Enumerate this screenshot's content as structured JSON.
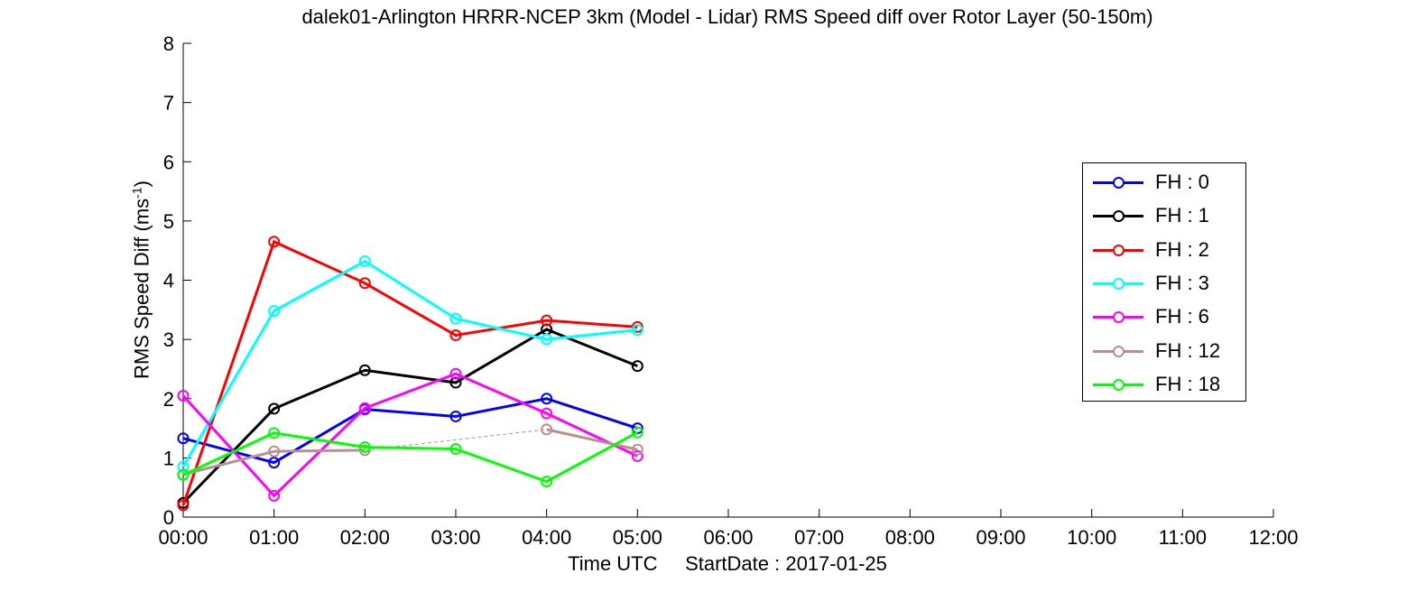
{
  "chart_data": {
    "type": "line",
    "title": "dalek01-Arlington HRRR-NCEP 3km (Model - Lidar) RMS Speed diff over Rotor Layer (50-150m)",
    "xlabel": "Time UTC     StartDate : 2017-01-25",
    "ylabel": "RMS Speed Diff (ms",
    "ylabel_sup": "-1",
    "ylabel_end": ")",
    "x_ticks": [
      "00:00",
      "01:00",
      "02:00",
      "03:00",
      "04:00",
      "05:00",
      "06:00",
      "07:00",
      "08:00",
      "09:00",
      "10:00",
      "11:00",
      "12:00"
    ],
    "xlim": [
      0,
      12
    ],
    "ylim": [
      0,
      8
    ],
    "y_ticks": [
      "0",
      "1",
      "2",
      "3",
      "4",
      "5",
      "6",
      "7",
      "8"
    ],
    "legend_position": "right",
    "series": [
      {
        "name": "FH : 0",
        "color": "#0000ff",
        "x": [
          0,
          1,
          2,
          3,
          4,
          5
        ],
        "values": [
          1.33,
          0.92,
          1.82,
          1.7,
          2.0,
          1.5
        ]
      },
      {
        "name": "FH : 1",
        "color": "#000000",
        "x": [
          0,
          1,
          2,
          3,
          4,
          5
        ],
        "values": [
          0.24,
          1.83,
          2.48,
          2.27,
          3.17,
          2.55
        ]
      },
      {
        "name": "FH : 2",
        "color": "#ff0000",
        "x": [
          0,
          1,
          2,
          3,
          4,
          5
        ],
        "values": [
          0.2,
          4.65,
          3.95,
          3.07,
          3.32,
          3.21
        ]
      },
      {
        "name": "FH : 3",
        "color": "#00ffff",
        "x": [
          0,
          1,
          2,
          3,
          4,
          5
        ],
        "values": [
          0.85,
          3.48,
          4.32,
          3.35,
          3.0,
          3.16
        ]
      },
      {
        "name": "FH : 6",
        "color": "#ff00ff",
        "x": [
          0,
          1,
          2,
          3,
          4,
          5
        ],
        "values": [
          2.05,
          0.36,
          1.84,
          2.42,
          1.75,
          1.03
        ]
      },
      {
        "name": "FH : 12",
        "color": "#bc8f8f",
        "x": [
          0,
          1,
          2,
          4,
          5
        ],
        "values": [
          0.72,
          1.11,
          1.13,
          1.48,
          1.14
        ],
        "solid_segments": [
          [
            0,
            1
          ],
          [
            1,
            2
          ],
          [
            4,
            5
          ]
        ],
        "dashed_segments": [
          [
            2,
            4
          ]
        ]
      },
      {
        "name": "FH : 18",
        "color": "#00ff00",
        "x": [
          0,
          1,
          2,
          3,
          4,
          5
        ],
        "values": [
          0.71,
          1.42,
          1.18,
          1.15,
          0.6,
          1.43
        ]
      }
    ]
  }
}
